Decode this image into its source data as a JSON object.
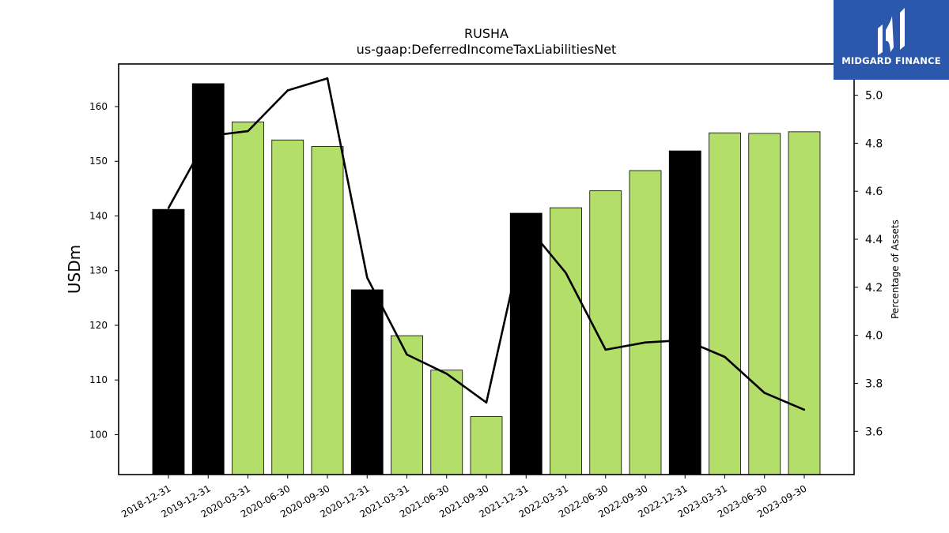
{
  "chart_data": {
    "type": "bar",
    "title": "RUSHA",
    "subtitle": "us-gaap:DeferredIncomeTaxLiabilitiesNet",
    "ylabel": "USDm",
    "y2label": "Percentage of Assets",
    "categories": [
      "2018-12-31",
      "2019-12-31",
      "2020-03-31",
      "2020-06-30",
      "2020-09-30",
      "2020-12-31",
      "2021-03-31",
      "2021-06-30",
      "2021-09-30",
      "2021-12-31",
      "2022-03-31",
      "2022-06-30",
      "2022-09-30",
      "2022-12-31",
      "2023-03-31",
      "2023-06-30",
      "2023-09-30"
    ],
    "series": [
      {
        "type": "bar",
        "values": [
          141.2,
          164.2,
          157.2,
          153.9,
          152.7,
          126.5,
          118.1,
          111.8,
          103.3,
          140.5,
          141.5,
          144.6,
          148.3,
          151.9,
          155.2,
          155.1,
          155.4
        ]
      },
      {
        "type": "line",
        "axis": "right",
        "values": [
          4.53,
          4.83,
          4.85,
          5.02,
          5.07,
          4.24,
          3.92,
          3.84,
          3.72,
          4.46,
          4.26,
          3.94,
          3.97,
          3.98,
          3.91,
          3.76,
          3.69
        ]
      }
    ],
    "bar_colors": [
      "#000000",
      "#000000",
      "#b3de69",
      "#b3de69",
      "#b3de69",
      "#000000",
      "#b3de69",
      "#b3de69",
      "#b3de69",
      "#000000",
      "#b3de69",
      "#b3de69",
      "#b3de69",
      "#000000",
      "#b3de69",
      "#b3de69",
      "#b3de69"
    ],
    "ylim": [
      92.7,
      167.8
    ],
    "yticks": [
      100,
      110,
      120,
      130,
      140,
      150,
      160
    ],
    "y2lim": [
      3.42,
      5.13
    ],
    "y2ticks": [
      3.6,
      3.8,
      4.0,
      4.2,
      4.4,
      4.6,
      4.8,
      5.0
    ],
    "y2tick_labels": [
      "3.6",
      "3.8",
      "4.0",
      "4.2",
      "4.4",
      "4.6",
      "4.8",
      "5.0"
    ],
    "grid": false,
    "line_color": "#000000"
  },
  "logo": {
    "text": "MIDGARD FINANCE"
  }
}
